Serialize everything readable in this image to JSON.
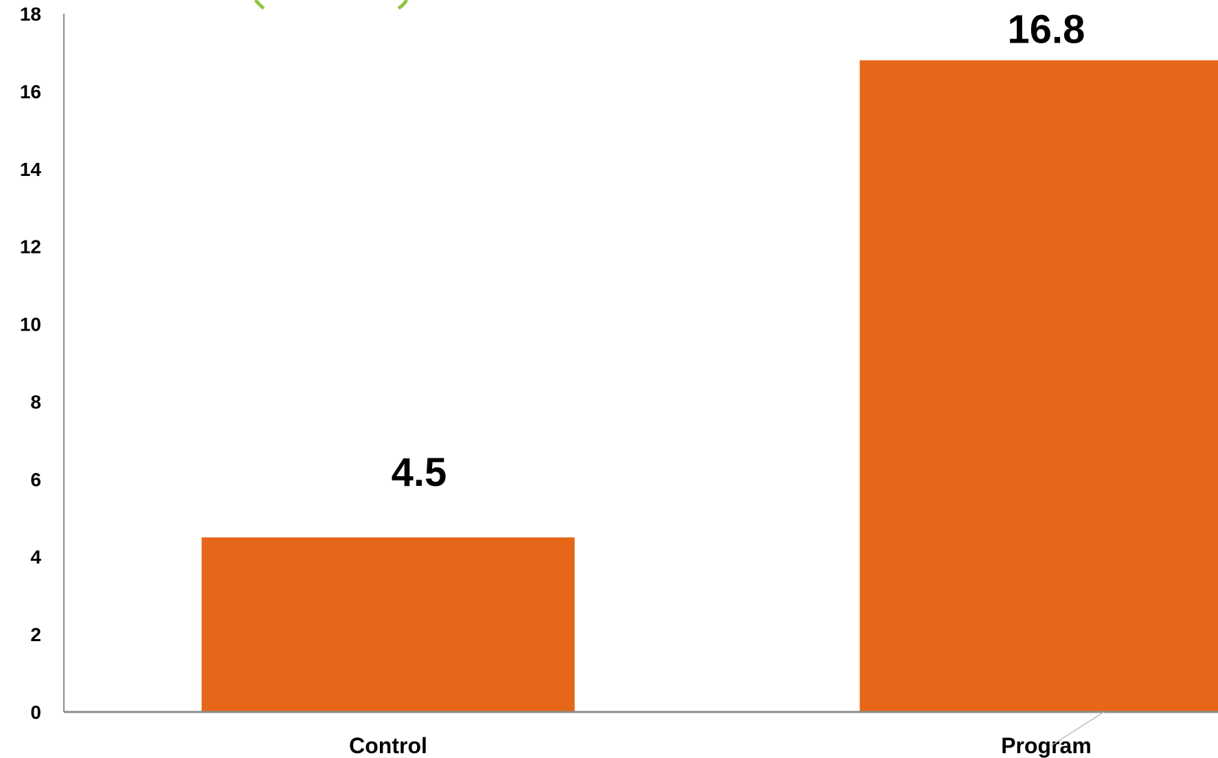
{
  "chart_data": {
    "type": "bar",
    "title": "",
    "xlabel": "",
    "ylabel": "",
    "categories": [
      "Control",
      "Program"
    ],
    "values": [
      4.5,
      16.8
    ],
    "data_labels": [
      "4.5",
      "16.8"
    ],
    "ylim": [
      0,
      18
    ],
    "yticks": [
      0,
      2,
      4,
      6,
      8,
      10,
      12,
      14,
      16,
      18
    ],
    "ytick_labels": [
      "0",
      "2",
      "4",
      "6",
      "8",
      "10",
      "12",
      "14",
      "16",
      "18"
    ],
    "grid": false,
    "legend": "none",
    "bar_color": "#E66719",
    "axis_color": "#8C8C8C",
    "decoration_color": "#8DC63F"
  }
}
